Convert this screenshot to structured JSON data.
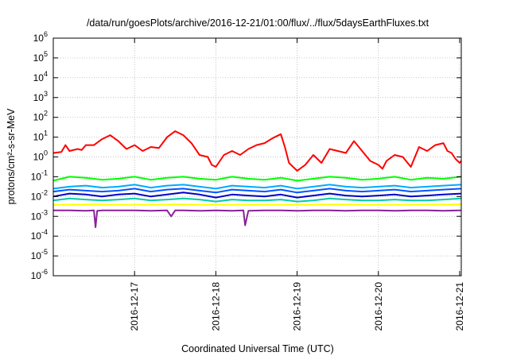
{
  "chart_data": {
    "type": "line",
    "title": "/data/run/goesPlots/archive/2016-12-21/01:00/flux/../flux/5daysEarthFluxes.txt",
    "xlabel": "Coordinated Universal Time (UTC)",
    "ylabel": "protons/cm²-s-sr-MeV",
    "yscale": "log",
    "ylim_exp": [
      -6,
      6
    ],
    "xlim_days": [
      0,
      5.02
    ],
    "x_ticks": [
      {
        "label": "2016-12-17",
        "day": 1.0
      },
      {
        "label": "2016-12-18",
        "day": 2.0
      },
      {
        "label": "2016-12-19",
        "day": 3.0
      },
      {
        "label": "2016-12-20",
        "day": 4.0
      },
      {
        "label": "2016-12-21",
        "day": 5.0
      }
    ],
    "y_ticks": [
      {
        "base": "10",
        "exp": "-6",
        "v": -6
      },
      {
        "base": "10",
        "exp": "-5",
        "v": -5
      },
      {
        "base": "10",
        "exp": "-4",
        "v": -4
      },
      {
        "base": "10",
        "exp": "-3",
        "v": -3
      },
      {
        "base": "10",
        "exp": "-2",
        "v": -2
      },
      {
        "base": "10",
        "exp": "-1",
        "v": -1
      },
      {
        "base": "10",
        "exp": "0",
        "v": 0
      },
      {
        "base": "10",
        "exp": "1",
        "v": 1
      },
      {
        "base": "10",
        "exp": "2",
        "v": 2
      },
      {
        "base": "10",
        "exp": "3",
        "v": 3
      },
      {
        "base": "10",
        "exp": "4",
        "v": 4
      },
      {
        "base": "10",
        "exp": "5",
        "v": 5
      },
      {
        "base": "10",
        "exp": "6",
        "v": 6
      }
    ],
    "grid": true,
    "legend": "none",
    "series": [
      {
        "color": "#ff0000",
        "x": [
          0.0,
          0.1,
          0.15,
          0.2,
          0.3,
          0.35,
          0.4,
          0.5,
          0.6,
          0.7,
          0.8,
          0.9,
          1.0,
          1.1,
          1.2,
          1.3,
          1.4,
          1.5,
          1.6,
          1.7,
          1.8,
          1.9,
          1.95,
          2.0,
          2.05,
          2.1,
          2.2,
          2.3,
          2.4,
          2.5,
          2.6,
          2.7,
          2.8,
          2.85,
          2.9,
          2.95,
          3.0,
          3.1,
          3.2,
          3.3,
          3.4,
          3.5,
          3.6,
          3.7,
          3.8,
          3.9,
          4.0,
          4.05,
          4.1,
          4.2,
          4.3,
          4.4,
          4.5,
          4.6,
          4.7,
          4.8,
          4.85,
          4.9,
          4.95,
          5.0,
          5.02
        ],
        "values": [
          0.2,
          0.25,
          0.6,
          0.3,
          0.4,
          0.35,
          0.6,
          0.6,
          0.9,
          1.1,
          0.8,
          0.4,
          0.6,
          0.3,
          0.5,
          0.45,
          1.0,
          1.3,
          1.1,
          0.7,
          0.1,
          0.0,
          -0.4,
          -0.5,
          -0.2,
          0.1,
          0.3,
          0.1,
          0.4,
          0.6,
          0.7,
          0.95,
          1.15,
          0.5,
          -0.3,
          -0.5,
          -0.7,
          -0.4,
          0.1,
          -0.3,
          0.4,
          0.3,
          0.2,
          0.8,
          0.3,
          -0.2,
          -0.4,
          -0.6,
          -0.2,
          0.1,
          0.0,
          -0.5,
          0.5,
          0.3,
          0.6,
          0.7,
          0.3,
          0.2,
          -0.1,
          -0.3,
          -0.2
        ]
      },
      {
        "color": "#00ff00",
        "x": [
          0.0,
          0.2,
          0.4,
          0.6,
          0.8,
          1.0,
          1.2,
          1.4,
          1.6,
          1.8,
          2.0,
          2.2,
          2.4,
          2.6,
          2.8,
          3.0,
          3.2,
          3.4,
          3.6,
          3.8,
          4.0,
          4.2,
          4.4,
          4.6,
          4.8,
          5.02
        ],
        "values": [
          -1.2,
          -1.0,
          -1.05,
          -1.15,
          -1.1,
          -1.0,
          -1.15,
          -1.05,
          -1.0,
          -1.1,
          -1.15,
          -1.0,
          -1.1,
          -1.15,
          -1.05,
          -1.2,
          -1.1,
          -1.0,
          -1.05,
          -1.15,
          -1.1,
          -1.0,
          -1.15,
          -1.05,
          -1.1,
          -1.0
        ]
      },
      {
        "color": "#00aaff",
        "x": [
          0.0,
          0.2,
          0.4,
          0.6,
          0.8,
          1.0,
          1.2,
          1.4,
          1.6,
          1.8,
          2.0,
          2.2,
          2.4,
          2.6,
          2.8,
          3.0,
          3.2,
          3.4,
          3.6,
          3.8,
          4.0,
          4.2,
          4.4,
          4.6,
          4.8,
          5.02
        ],
        "values": [
          -1.6,
          -1.5,
          -1.45,
          -1.55,
          -1.5,
          -1.4,
          -1.55,
          -1.45,
          -1.4,
          -1.5,
          -1.6,
          -1.45,
          -1.5,
          -1.55,
          -1.45,
          -1.6,
          -1.5,
          -1.4,
          -1.5,
          -1.55,
          -1.5,
          -1.45,
          -1.55,
          -1.5,
          -1.45,
          -1.4
        ]
      },
      {
        "color": "#0055ff",
        "x": [
          0.0,
          0.2,
          0.4,
          0.6,
          0.8,
          1.0,
          1.2,
          1.4,
          1.6,
          1.8,
          2.0,
          2.2,
          2.4,
          2.6,
          2.8,
          3.0,
          3.2,
          3.4,
          3.6,
          3.8,
          4.0,
          4.2,
          4.4,
          4.6,
          4.8,
          5.02
        ],
        "values": [
          -1.75,
          -1.65,
          -1.7,
          -1.75,
          -1.7,
          -1.6,
          -1.75,
          -1.65,
          -1.6,
          -1.7,
          -1.8,
          -1.65,
          -1.7,
          -1.75,
          -1.65,
          -1.8,
          -1.7,
          -1.6,
          -1.7,
          -1.75,
          -1.7,
          -1.65,
          -1.75,
          -1.7,
          -1.65,
          -1.6
        ]
      },
      {
        "color": "#0000cc",
        "x": [
          0.0,
          0.2,
          0.4,
          0.6,
          0.8,
          1.0,
          1.2,
          1.4,
          1.6,
          1.8,
          2.0,
          2.2,
          2.4,
          2.6,
          2.8,
          3.0,
          3.2,
          3.4,
          3.6,
          3.8,
          4.0,
          4.2,
          4.4,
          4.6,
          4.8,
          5.02
        ],
        "values": [
          -2.0,
          -1.85,
          -1.9,
          -2.0,
          -1.9,
          -1.85,
          -2.0,
          -1.9,
          -1.8,
          -1.9,
          -2.05,
          -1.9,
          -1.95,
          -2.0,
          -1.9,
          -2.05,
          -1.95,
          -1.85,
          -1.95,
          -2.0,
          -1.95,
          -1.9,
          -2.0,
          -1.95,
          -1.9,
          -1.85
        ]
      },
      {
        "color": "#00ccaa",
        "x": [
          0.0,
          0.2,
          0.4,
          0.6,
          0.8,
          1.0,
          1.2,
          1.4,
          1.6,
          1.8,
          2.0,
          2.2,
          2.4,
          2.6,
          2.8,
          3.0,
          3.2,
          3.4,
          3.6,
          3.8,
          4.0,
          4.2,
          4.4,
          4.6,
          4.8,
          5.02
        ],
        "values": [
          -2.2,
          -2.1,
          -2.15,
          -2.2,
          -2.15,
          -2.1,
          -2.2,
          -2.15,
          -2.1,
          -2.15,
          -2.25,
          -2.15,
          -2.2,
          -2.2,
          -2.15,
          -2.25,
          -2.2,
          -2.1,
          -2.15,
          -2.2,
          -2.2,
          -2.15,
          -2.2,
          -2.2,
          -2.15,
          -2.1
        ]
      },
      {
        "color": "#ffff00",
        "x": [
          0.0,
          0.5,
          1.0,
          1.5,
          2.0,
          2.5,
          3.0,
          3.5,
          4.0,
          4.5,
          5.02
        ],
        "values": [
          -2.42,
          -2.4,
          -2.42,
          -2.4,
          -2.42,
          -2.41,
          -2.42,
          -2.4,
          -2.42,
          -2.41,
          -2.4
        ]
      },
      {
        "color": "#882299",
        "x": [
          0.0,
          0.2,
          0.4,
          0.5,
          0.52,
          0.54,
          0.6,
          0.8,
          1.0,
          1.2,
          1.4,
          1.45,
          1.5,
          1.6,
          1.8,
          2.0,
          2.2,
          2.34,
          2.36,
          2.4,
          2.6,
          2.8,
          3.0,
          3.2,
          3.4,
          3.6,
          3.8,
          4.0,
          4.2,
          4.4,
          4.6,
          4.8,
          5.0,
          5.02
        ],
        "values": [
          -2.7,
          -2.7,
          -2.72,
          -2.7,
          -3.55,
          -2.72,
          -2.7,
          -2.7,
          -2.7,
          -2.72,
          -2.7,
          -3.0,
          -2.7,
          -2.7,
          -2.72,
          -2.7,
          -2.72,
          -2.7,
          -3.45,
          -2.72,
          -2.7,
          -2.7,
          -2.72,
          -2.7,
          -2.7,
          -2.72,
          -2.7,
          -2.7,
          -2.72,
          -2.7,
          -2.7,
          -2.72,
          -2.7,
          -2.7
        ]
      }
    ]
  }
}
